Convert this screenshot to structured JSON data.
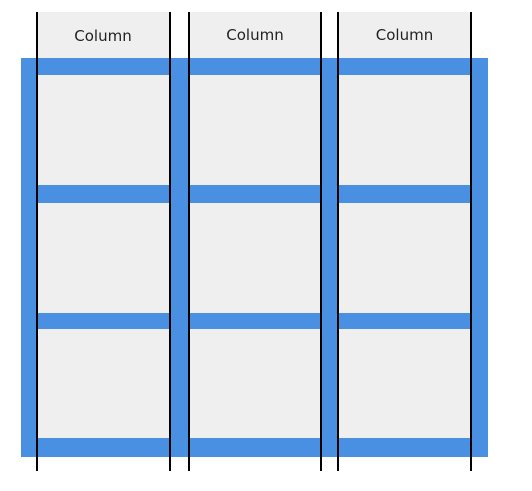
{
  "columns": [
    {
      "label": "Column"
    },
    {
      "label": "Column"
    },
    {
      "label": "Column"
    }
  ],
  "colors": {
    "gutter": "#4a90e2",
    "column_fill": "#efefef",
    "column_edge": "#000000"
  }
}
